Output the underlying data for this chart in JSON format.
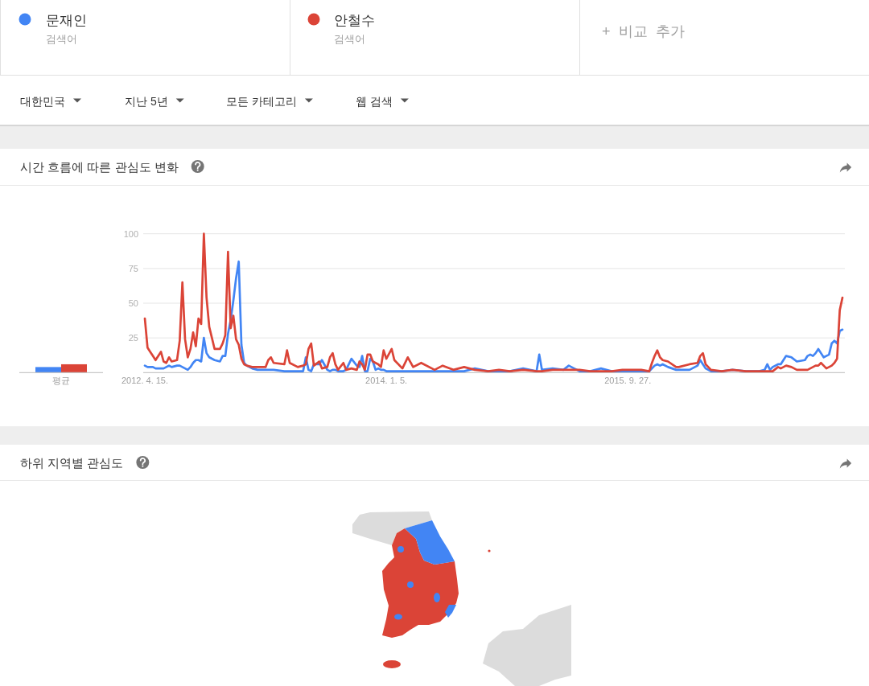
{
  "chart_data": [
    {
      "type": "line",
      "title": "시간 흐름에 따른 관심도 변화",
      "legend": "top",
      "annotations": [
        "검색어",
        "검색어",
        "+ 비교 추가",
        "대한민국",
        "지난 5년",
        "모든 카테고리",
        "웹 검색"
      ],
      "x": [
        "2012-04-15",
        "2012-04-22",
        "2012-04-29",
        "2012-05-06",
        "2012-05-13",
        "2012-05-27",
        "2012-06-03",
        "2012-06-10",
        "2012-06-17",
        "2012-06-24",
        "2012-07-08",
        "2012-07-15",
        "2012-07-22",
        "2012-07-29",
        "2012-08-05",
        "2012-08-12",
        "2012-08-19",
        "2012-08-26",
        "2012-09-02",
        "2012-09-09",
        "2012-09-16",
        "2012-09-23",
        "2012-09-30",
        "2012-10-07",
        "2012-10-14",
        "2012-10-28",
        "2012-11-04",
        "2012-11-11",
        "2012-11-18",
        "2012-11-25",
        "2012-12-02",
        "2012-12-09",
        "2012-12-16",
        "2012-12-23",
        "2012-12-30",
        "2013-01-06",
        "2013-01-20",
        "2013-02-03",
        "2013-02-24",
        "2013-03-03",
        "2013-03-10",
        "2013-03-17",
        "2013-04-14",
        "2013-04-21",
        "2013-04-28",
        "2013-05-19",
        "2013-06-02",
        "2013-06-09",
        "2013-06-16",
        "2013-06-23",
        "2013-06-30",
        "2013-07-14",
        "2013-07-21",
        "2013-08-04",
        "2013-08-11",
        "2013-08-18",
        "2013-08-25",
        "2013-09-01",
        "2013-09-15",
        "2013-09-22",
        "2013-10-06",
        "2013-10-20",
        "2013-10-27",
        "2013-11-03",
        "2013-11-10",
        "2013-11-17",
        "2013-11-24",
        "2013-12-01",
        "2013-12-08",
        "2013-12-15",
        "2013-12-22",
        "2013-12-29",
        "2014-01-05",
        "2014-01-19",
        "2014-01-26",
        "2014-02-16",
        "2014-03-02",
        "2014-03-16",
        "2014-04-06",
        "2014-05-11",
        "2014-06-01",
        "2014-06-29",
        "2014-07-27",
        "2014-08-24",
        "2014-09-28",
        "2014-10-26",
        "2014-11-23",
        "2014-12-28",
        "2015-02-01",
        "2015-02-08",
        "2015-02-15",
        "2015-03-15",
        "2015-04-12",
        "2015-04-26",
        "2015-05-10",
        "2015-05-24",
        "2015-06-21",
        "2015-07-19",
        "2015-08-16",
        "2015-09-13",
        "2015-10-04",
        "2015-11-01",
        "2015-11-22",
        "2015-11-29",
        "2015-12-06",
        "2015-12-13",
        "2015-12-20",
        "2015-12-27",
        "2016-01-10",
        "2016-01-31",
        "2016-02-07",
        "2016-03-06",
        "2016-03-27",
        "2016-04-03",
        "2016-04-10",
        "2016-04-17",
        "2016-05-01",
        "2016-05-29",
        "2016-06-26",
        "2016-07-31",
        "2016-09-04",
        "2016-09-18",
        "2016-09-25",
        "2016-10-02",
        "2016-10-09",
        "2016-10-23",
        "2016-10-30",
        "2016-11-13",
        "2016-11-27",
        "2016-12-11",
        "2017-01-01",
        "2017-01-08",
        "2017-01-15",
        "2017-01-22",
        "2017-01-29",
        "2017-02-05",
        "2017-02-12",
        "2017-02-19",
        "2017-02-26",
        "2017-03-05",
        "2017-03-12",
        "2017-03-19",
        "2017-03-26",
        "2017-04-02",
        "2017-04-09"
      ],
      "xlim": [
        "2012-04-15",
        "2017-04-09"
      ],
      "xticks": [
        {
          "value": "2012-04-15",
          "label": "2012. 4. 15."
        },
        {
          "value": "2014-01-05",
          "label": "2014. 1. 5."
        },
        {
          "value": "2015-09-27",
          "label": "2015. 9. 27."
        }
      ],
      "ylim": [
        0,
        100
      ],
      "yticks": [
        {
          "value": 0,
          "label": null
        },
        25,
        50,
        75,
        100
      ],
      "grid": "y",
      "line_style": "solid",
      "series": [
        {
          "name": "문재인",
          "color": "#4285f4",
          "values": [
            5,
            4,
            4,
            4,
            3,
            3,
            3,
            4,
            5,
            4,
            5,
            5,
            4,
            3,
            2,
            4,
            7,
            9,
            9,
            8,
            25,
            14,
            11,
            10,
            9,
            8,
            12,
            12,
            28,
            38,
            52,
            68,
            80,
            20,
            7,
            5,
            3,
            2,
            2,
            2,
            2,
            2,
            1,
            1,
            1,
            1,
            1,
            11,
            2,
            1,
            6,
            6,
            9,
            2,
            1,
            2,
            2,
            1,
            1,
            2,
            10,
            5,
            4,
            12,
            1,
            1,
            10,
            8,
            2,
            3,
            2,
            2,
            1,
            1,
            1,
            1,
            1,
            1,
            1,
            1,
            1,
            1,
            1,
            3,
            1,
            1,
            1,
            3,
            1,
            13,
            2,
            3,
            2,
            5,
            3,
            1,
            1,
            3,
            1,
            1,
            1,
            1,
            1,
            3,
            5,
            6,
            5,
            6,
            4,
            2,
            2,
            2,
            5,
            9,
            6,
            3,
            1,
            1,
            2,
            1,
            1,
            2,
            6,
            2,
            4,
            6,
            6,
            12,
            11,
            8,
            9,
            12,
            13,
            12,
            14,
            17,
            14,
            11,
            12,
            13,
            21,
            23,
            21,
            30,
            31
          ]
        },
        {
          "name": "안철수",
          "color": "#db4437",
          "values": [
            39,
            18,
            15,
            12,
            9,
            15,
            8,
            7,
            11,
            8,
            9,
            23,
            65,
            24,
            11,
            17,
            29,
            19,
            39,
            35,
            100,
            54,
            33,
            25,
            17,
            17,
            21,
            27,
            87,
            32,
            41,
            24,
            20,
            10,
            6,
            5,
            4,
            4,
            4,
            9,
            11,
            7,
            6,
            16,
            7,
            4,
            5,
            6,
            17,
            21,
            5,
            8,
            3,
            4,
            11,
            14,
            6,
            2,
            7,
            2,
            3,
            2,
            8,
            6,
            2,
            13,
            13,
            8,
            7,
            6,
            4,
            16,
            10,
            17,
            9,
            3,
            11,
            4,
            7,
            2,
            5,
            2,
            4,
            2,
            1,
            2,
            1,
            2,
            1,
            1,
            1,
            2,
            2,
            2,
            2,
            2,
            1,
            1,
            1,
            2,
            2,
            2,
            1,
            7,
            12,
            16,
            11,
            9,
            8,
            4,
            4,
            6,
            7,
            12,
            14,
            6,
            2,
            1,
            2,
            1,
            1,
            1,
            1,
            1,
            1,
            4,
            3,
            5,
            4,
            2,
            2,
            2,
            3,
            4,
            5,
            5,
            7,
            5,
            3,
            4,
            5,
            7,
            10,
            45,
            54
          ]
        }
      ]
    },
    {
      "type": "bar",
      "categories": [
        "평균"
      ],
      "series": [
        {
          "color": "#4285f4",
          "values": [
            4
          ]
        },
        {
          "color": "#db4437",
          "values": [
            6
          ]
        }
      ],
      "ylim": [
        0,
        100
      ],
      "tick_labels": "x"
    },
    {
      "type": "other",
      "title": "하위 지역별 관심도"
    }
  ]
}
